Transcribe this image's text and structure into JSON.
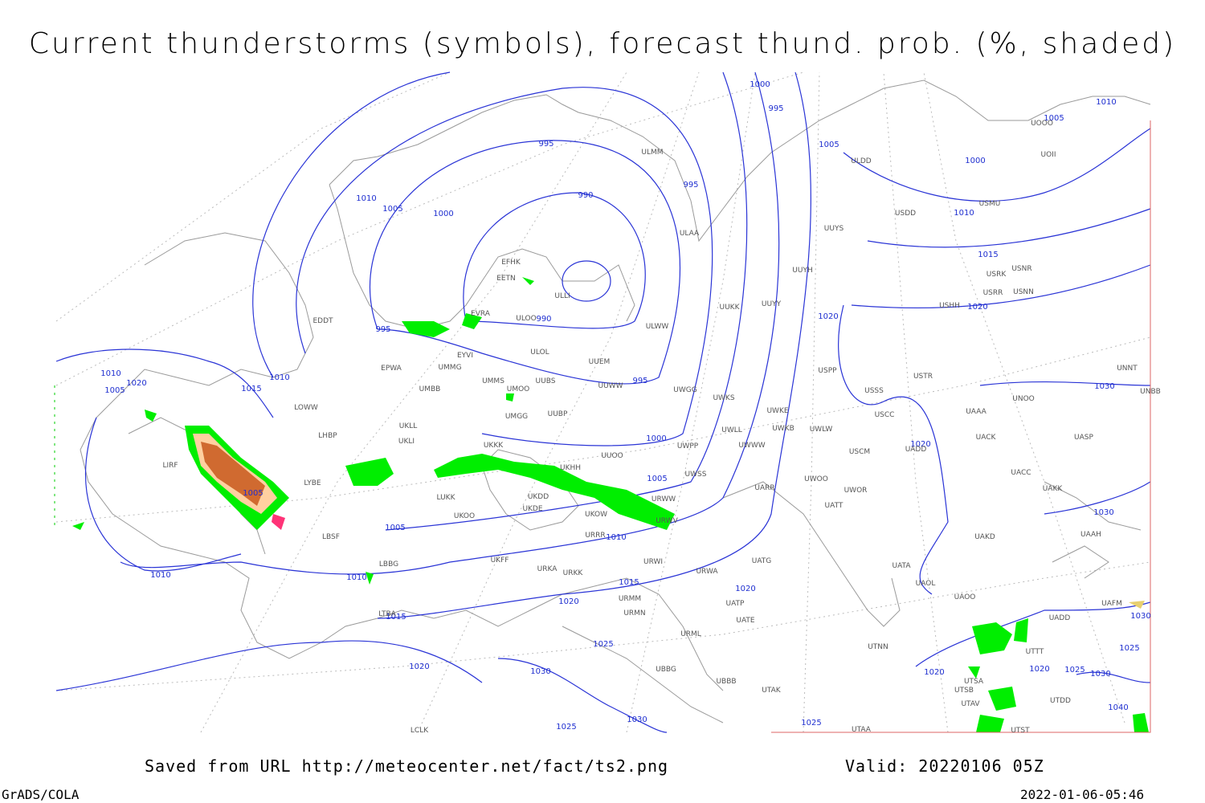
{
  "title": "Current thunderstorms (symbols), forecast thund. prob. (%, shaded)",
  "footer": {
    "source": "Saved from URL http://meteocenter.net/fact/ts2.png",
    "valid": "Valid: 20220106 05Z",
    "software": "GrADS/COLA",
    "timestamp": "2022-01-06-05:46"
  },
  "map": {
    "isobar_labels": [
      1000,
      995,
      1005,
      1010,
      995,
      1005,
      1000,
      995,
      990,
      1010,
      1005,
      1000,
      1010,
      1015,
      1020,
      990,
      995,
      1020,
      1010,
      1020,
      1005,
      1010,
      1015,
      995,
      1000,
      1020,
      1005,
      1005,
      1005,
      1010,
      1030,
      1030,
      1010,
      1010,
      1015,
      1020,
      1020,
      1015,
      1025,
      1020,
      1025,
      1030,
      1025,
      1020,
      1020,
      1030,
      1030,
      1025,
      1025,
      1040,
      1030
    ],
    "stations": [
      "ULMM",
      "ULDD",
      "UUYS",
      "ULAA",
      "USDD",
      "USMU",
      "UOOO",
      "UOII",
      "EFHK",
      "EETN",
      "ULLI",
      "UUYH",
      "USRK",
      "USNR",
      "USRR",
      "USNN",
      "USHH",
      "UUKK",
      "UUYY",
      "EVRA",
      "ULOO",
      "ULWW",
      "EDDT",
      "EYVI",
      "ULOL",
      "UUEM",
      "EPWA",
      "UMMG",
      "UMMS",
      "UUBS",
      "UMOO",
      "UUWW",
      "UWGG",
      "USPP",
      "USTR",
      "USSS",
      "UNNT",
      "UNBB",
      "UNOO",
      "LOWW",
      "UMBB",
      "UMGG",
      "UUBP",
      "UWKS",
      "UWKE",
      "UWKB",
      "UWLW",
      "USCC",
      "UAAA",
      "UACK",
      "UASP",
      "LHBP",
      "UKLL",
      "UKLI",
      "UKKK",
      "UUOO",
      "UWPP",
      "UWLL",
      "UWWW",
      "USCM",
      "UADD",
      "LIRF",
      "UKHH",
      "UWSS",
      "UARR",
      "UWOO",
      "UWOR",
      "UACC",
      "UAKK",
      "LYBE",
      "LUKK",
      "UKDD",
      "UATT",
      "UKOW",
      "URWW",
      "URWV",
      "UKOO",
      "UKDE",
      "LBSF",
      "URRR",
      "UAKD",
      "UAAH",
      "UKFF",
      "URWI",
      "UATG",
      "LBBG",
      "URKA",
      "URKK",
      "URWA",
      "UATA",
      "URMM",
      "UATP",
      "UAOL",
      "UAOO",
      "UAFM",
      "LTBA",
      "URMN",
      "UATE",
      "UADD",
      "URML",
      "UTNN",
      "UTTT",
      "UTDD",
      "UTSA",
      "UTSB",
      "UTAV",
      "UBBB",
      "UTAK",
      "UTAA",
      "UBBG",
      "LCLK",
      "UTST"
    ]
  }
}
